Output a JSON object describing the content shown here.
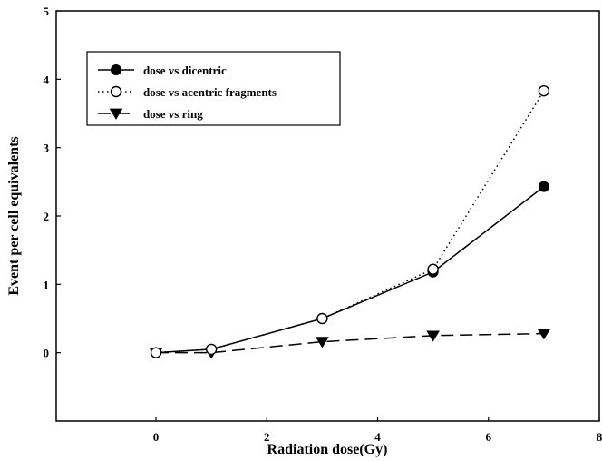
{
  "chart_data": {
    "type": "line",
    "xlabel": "Radiation dose(Gy)",
    "ylabel": "Event per cell equivalents",
    "xlim": [
      -1.8,
      8
    ],
    "ylim": [
      -1,
      5
    ],
    "xticks": [
      "0",
      "2",
      "4",
      "6",
      "8"
    ],
    "yticks": [
      "0",
      "1",
      "2",
      "3",
      "4",
      "5"
    ],
    "grid": false,
    "legend_position": "top-left",
    "series": [
      {
        "name": "dose vs dicentric",
        "x": [
          0,
          1,
          3,
          5,
          7
        ],
        "y": [
          0,
          0.05,
          0.5,
          1.18,
          2.43
        ],
        "marker": "filled-circle",
        "line": "solid",
        "color": "#000000"
      },
      {
        "name": "dose vs acentric fragments",
        "x": [
          0,
          1,
          3,
          5,
          7
        ],
        "y": [
          0,
          0.05,
          0.5,
          1.22,
          3.83
        ],
        "marker": "open-circle",
        "line": "dotted",
        "color": "#000000"
      },
      {
        "name": "dose vs ring",
        "x": [
          0,
          1,
          3,
          5,
          7
        ],
        "y": [
          0,
          0,
          0.16,
          0.25,
          0.28
        ],
        "marker": "filled-triangle-down",
        "line": "dashed",
        "color": "#000000"
      }
    ]
  }
}
